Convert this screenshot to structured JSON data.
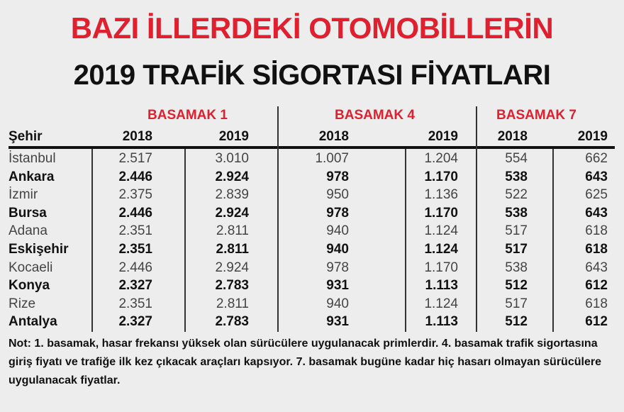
{
  "title": {
    "line1": "BAZI İLLERDEKİ OTOMOBİLLERİN",
    "line2": "2019 TRAFİK SİGORTASI FİYATLARI"
  },
  "groups": [
    "BASAMAK 1",
    "BASAMAK 4",
    "BASAMAK 7"
  ],
  "headers": {
    "city": "Şehir",
    "years": [
      "2018",
      "2019",
      "2018",
      "2019",
      "2018",
      "2019"
    ]
  },
  "rows": [
    {
      "city": "İstanbul",
      "bold": false,
      "values": [
        "2.517",
        "3.010",
        "1.007",
        "1.204",
        "554",
        "662"
      ]
    },
    {
      "city": "Ankara",
      "bold": true,
      "values": [
        "2.446",
        "2.924",
        "978",
        "1.170",
        "538",
        "643"
      ]
    },
    {
      "city": "İzmir",
      "bold": false,
      "values": [
        "2.375",
        "2.839",
        "950",
        "1.136",
        "522",
        "625"
      ]
    },
    {
      "city": "Bursa",
      "bold": true,
      "values": [
        "2.446",
        "2.924",
        "978",
        "1.170",
        "538",
        "643"
      ]
    },
    {
      "city": "Adana",
      "bold": false,
      "values": [
        "2.351",
        "2.811",
        "940",
        "1.124",
        "517",
        "618"
      ]
    },
    {
      "city": "Eskişehir",
      "bold": true,
      "values": [
        "2.351",
        "2.811",
        "940",
        "1.124",
        "517",
        "618"
      ]
    },
    {
      "city": "Kocaeli",
      "bold": false,
      "values": [
        "2.446",
        "2.924",
        "978",
        "1.170",
        "538",
        "643"
      ]
    },
    {
      "city": "Konya",
      "bold": true,
      "values": [
        "2.327",
        "2.783",
        "931",
        "1.113",
        "512",
        "612"
      ]
    },
    {
      "city": "Rize",
      "bold": false,
      "values": [
        "2.351",
        "2.811",
        "940",
        "1.124",
        "517",
        "618"
      ]
    },
    {
      "city": "Antalya",
      "bold": true,
      "values": [
        "2.327",
        "2.783",
        "931",
        "1.113",
        "512",
        "612"
      ]
    }
  ],
  "note": "Not: 1. basamak, hasar frekansı yüksek olan sürücülere uygulanacak primlerdir. 4. basamak trafik sigortasına giriş fiyatı ve trafiğe ilk kez çıkacak araçları kapsıyor. 7. basamak bugüne kadar hiç hasarı olmayan sürücülere uygulanacak fiyatlar."
}
